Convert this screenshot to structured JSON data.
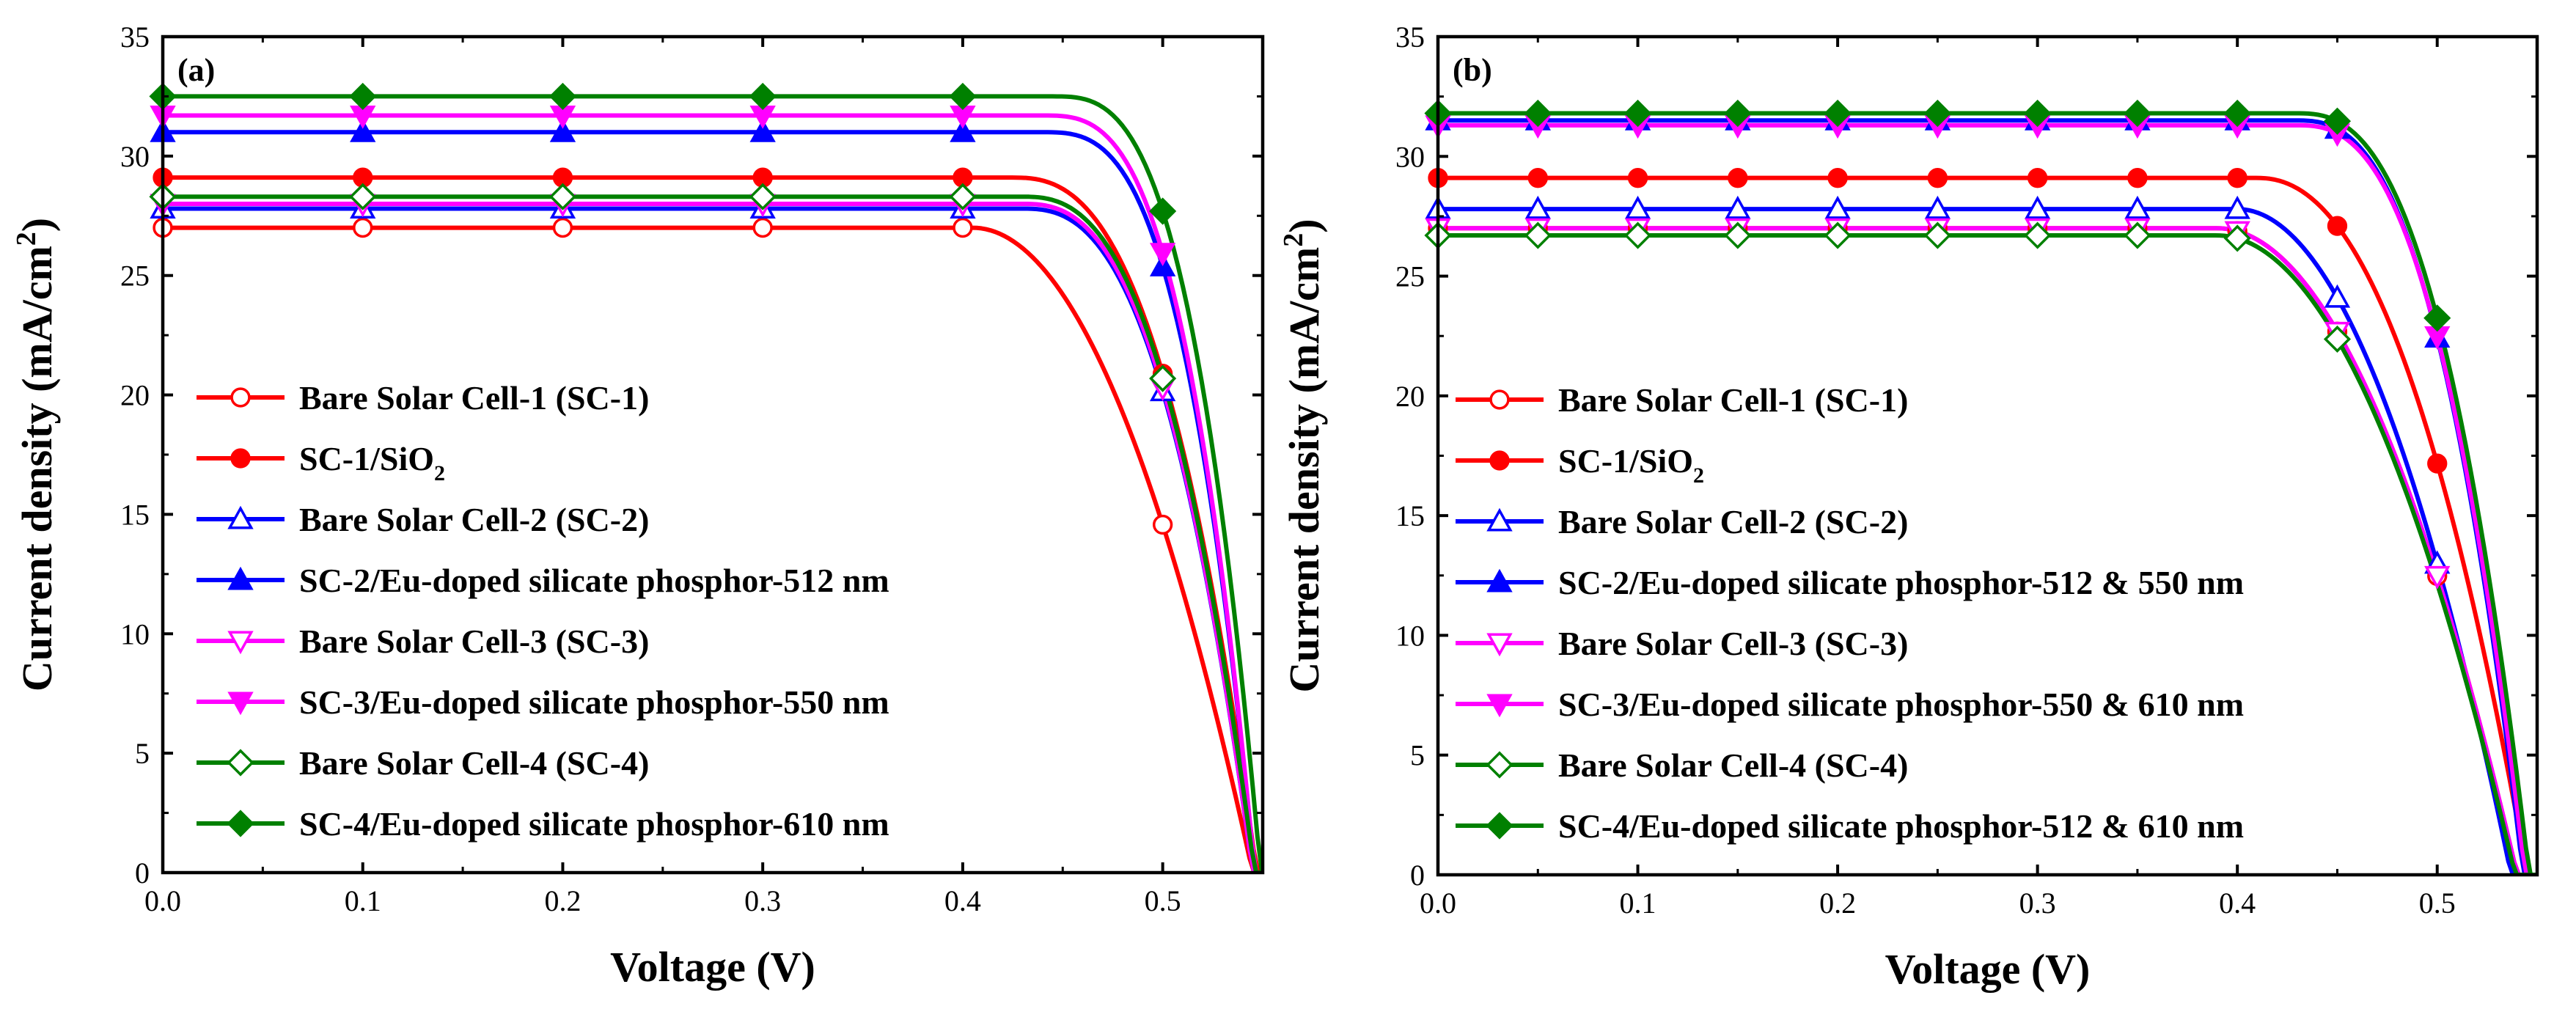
{
  "chart_data": [
    {
      "type": "line",
      "panel_label": "(a)",
      "xlabel": "Voltage (V)",
      "ylabel": "Current density (mA/cm",
      "ylabel_sup": "2",
      "ylabel_close": ")",
      "xlim": [
        0.0,
        0.55
      ],
      "ylim": [
        0,
        35
      ],
      "xticks": [
        0.0,
        0.1,
        0.2,
        0.3,
        0.4,
        0.5
      ],
      "xtick_labels": [
        "0.0",
        "0.1",
        "0.2",
        "0.3",
        "0.4",
        "0.5"
      ],
      "yticks": [
        0,
        5,
        10,
        15,
        20,
        25,
        30,
        35
      ],
      "ytick_labels": [
        "0",
        "5",
        "10",
        "15",
        "20",
        "25",
        "30",
        "35"
      ],
      "legend_position": "lower-left",
      "series": [
        {
          "name": "Bare Solar Cell-1 (SC-1)",
          "color": "#ff0000",
          "marker": "circle",
          "filled": false,
          "isc": 27.0,
          "voc": 0.545,
          "knee": 0.405,
          "shape": 2.0,
          "markers_x": [
            0.0,
            0.1,
            0.2,
            0.3,
            0.4,
            0.5
          ]
        },
        {
          "name": "SC-1/SiO",
          "name_sub": "2",
          "color": "#ff0000",
          "marker": "circle",
          "filled": true,
          "isc": 29.1,
          "voc": 0.547,
          "knee": 0.425,
          "shape": 2.6,
          "markers_x": [
            0.0,
            0.1,
            0.2,
            0.3,
            0.4,
            0.5
          ]
        },
        {
          "name": "Bare Solar Cell-2 (SC-2)",
          "color": "#0000ff",
          "marker": "triangle-up",
          "filled": false,
          "isc": 27.8,
          "voc": 0.545,
          "knee": 0.43,
          "shape": 2.6,
          "markers_x": [
            0.0,
            0.1,
            0.2,
            0.3,
            0.4,
            0.5
          ]
        },
        {
          "name": "SC-2/Eu-doped silicate phosphor-512 nm",
          "color": "#0000ff",
          "marker": "triangle-up",
          "filled": true,
          "isc": 31.0,
          "voc": 0.546,
          "knee": 0.44,
          "shape": 3.0,
          "markers_x": [
            0.0,
            0.1,
            0.2,
            0.3,
            0.4,
            0.5
          ]
        },
        {
          "name": "Bare Solar Cell-3 (SC-3)",
          "color": "#ff00ff",
          "marker": "triangle-down",
          "filled": false,
          "isc": 28.0,
          "voc": 0.545,
          "knee": 0.43,
          "shape": 2.6,
          "markers_x": [
            0.0,
            0.1,
            0.2,
            0.3,
            0.4,
            0.5
          ]
        },
        {
          "name": "SC-3/Eu-doped silicate phosphor-550 nm",
          "color": "#ff00ff",
          "marker": "triangle-down",
          "filled": true,
          "isc": 31.7,
          "voc": 0.546,
          "knee": 0.44,
          "shape": 3.0,
          "markers_x": [
            0.0,
            0.1,
            0.2,
            0.3,
            0.4,
            0.5
          ]
        },
        {
          "name": "Bare Solar Cell-4 (SC-4)",
          "color": "#008000",
          "marker": "diamond",
          "filled": false,
          "isc": 28.3,
          "voc": 0.546,
          "knee": 0.43,
          "shape": 2.6,
          "markers_x": [
            0.0,
            0.1,
            0.2,
            0.3,
            0.4,
            0.5
          ]
        },
        {
          "name": "SC-4/Eu-doped silicate phosphor-610 nm",
          "color": "#008000",
          "marker": "diamond",
          "filled": true,
          "isc": 32.5,
          "voc": 0.549,
          "knee": 0.445,
          "shape": 3.0,
          "markers_x": [
            0.0,
            0.1,
            0.2,
            0.3,
            0.4,
            0.5
          ]
        }
      ]
    },
    {
      "type": "line",
      "panel_label": "(b)",
      "xlabel": "Voltage (V)",
      "ylabel": "Current density (mA/cm",
      "ylabel_sup": "2",
      "ylabel_close": ")",
      "xlim": [
        0.0,
        0.55
      ],
      "ylim": [
        0,
        35
      ],
      "xticks": [
        0.0,
        0.1,
        0.2,
        0.3,
        0.4,
        0.5
      ],
      "xtick_labels": [
        "0.0",
        "0.1",
        "0.2",
        "0.3",
        "0.4",
        "0.5"
      ],
      "yticks": [
        0,
        5,
        10,
        15,
        20,
        25,
        30,
        35
      ],
      "ytick_labels": [
        "0",
        "5",
        "10",
        "15",
        "20",
        "25",
        "30",
        "35"
      ],
      "legend_position": "lower-left",
      "series": [
        {
          "name": "Bare Solar Cell-1 (SC-1)",
          "color": "#ff0000",
          "marker": "circle",
          "filled": false,
          "isc": 27.0,
          "voc": 0.54,
          "knee": 0.39,
          "shape": 2.0,
          "markers_x": [
            0.0,
            0.05,
            0.1,
            0.15,
            0.2,
            0.25,
            0.3,
            0.35,
            0.4,
            0.45,
            0.5
          ]
        },
        {
          "name": "SC-1/SiO",
          "name_sub": "2",
          "color": "#ff0000",
          "marker": "circle",
          "filled": true,
          "isc": 29.1,
          "voc": 0.545,
          "knee": 0.41,
          "shape": 2.2,
          "markers_x": [
            0.0,
            0.05,
            0.1,
            0.15,
            0.2,
            0.25,
            0.3,
            0.35,
            0.4,
            0.45,
            0.5
          ]
        },
        {
          "name": "Bare Solar Cell-2 (SC-2)",
          "color": "#0000ff",
          "marker": "triangle-up",
          "filled": false,
          "isc": 27.8,
          "voc": 0.537,
          "knee": 0.4,
          "shape": 2.0,
          "markers_x": [
            0.0,
            0.05,
            0.1,
            0.15,
            0.2,
            0.25,
            0.3,
            0.35,
            0.4,
            0.45,
            0.5
          ]
        },
        {
          "name": "SC-2/Eu-doped silicate phosphor-512 & 550 nm",
          "color": "#0000ff",
          "marker": "triangle-up",
          "filled": true,
          "isc": 31.5,
          "voc": 0.543,
          "knee": 0.43,
          "shape": 2.6,
          "markers_x": [
            0.0,
            0.05,
            0.1,
            0.15,
            0.2,
            0.25,
            0.3,
            0.35,
            0.4,
            0.45,
            0.5
          ]
        },
        {
          "name": "Bare Solar Cell-3 (SC-3)",
          "color": "#ff00ff",
          "marker": "triangle-down",
          "filled": false,
          "isc": 27.0,
          "voc": 0.54,
          "knee": 0.39,
          "shape": 2.0,
          "markers_x": [
            0.0,
            0.05,
            0.1,
            0.15,
            0.2,
            0.25,
            0.3,
            0.35,
            0.4,
            0.45,
            0.5
          ]
        },
        {
          "name": "SC-3/Eu-doped silicate phosphor-550 & 610 nm",
          "color": "#ff00ff",
          "marker": "triangle-down",
          "filled": true,
          "isc": 31.3,
          "voc": 0.544,
          "knee": 0.43,
          "shape": 2.6,
          "markers_x": [
            0.0,
            0.05,
            0.1,
            0.15,
            0.2,
            0.25,
            0.3,
            0.35,
            0.4,
            0.45,
            0.5
          ]
        },
        {
          "name": "Bare Solar Cell-4 (SC-4)",
          "color": "#008000",
          "marker": "diamond",
          "filled": false,
          "isc": 26.7,
          "voc": 0.539,
          "knee": 0.39,
          "shape": 2.0,
          "markers_x": [
            0.0,
            0.05,
            0.1,
            0.15,
            0.2,
            0.25,
            0.3,
            0.35,
            0.4,
            0.45
          ]
        },
        {
          "name": "SC-4/Eu-doped silicate phosphor-512 & 610 nm",
          "color": "#008000",
          "marker": "diamond",
          "filled": true,
          "isc": 31.8,
          "voc": 0.546,
          "knee": 0.43,
          "shape": 2.6,
          "markers_x": [
            0.0,
            0.05,
            0.1,
            0.15,
            0.2,
            0.25,
            0.3,
            0.35,
            0.4,
            0.45,
            0.5
          ]
        }
      ]
    }
  ]
}
